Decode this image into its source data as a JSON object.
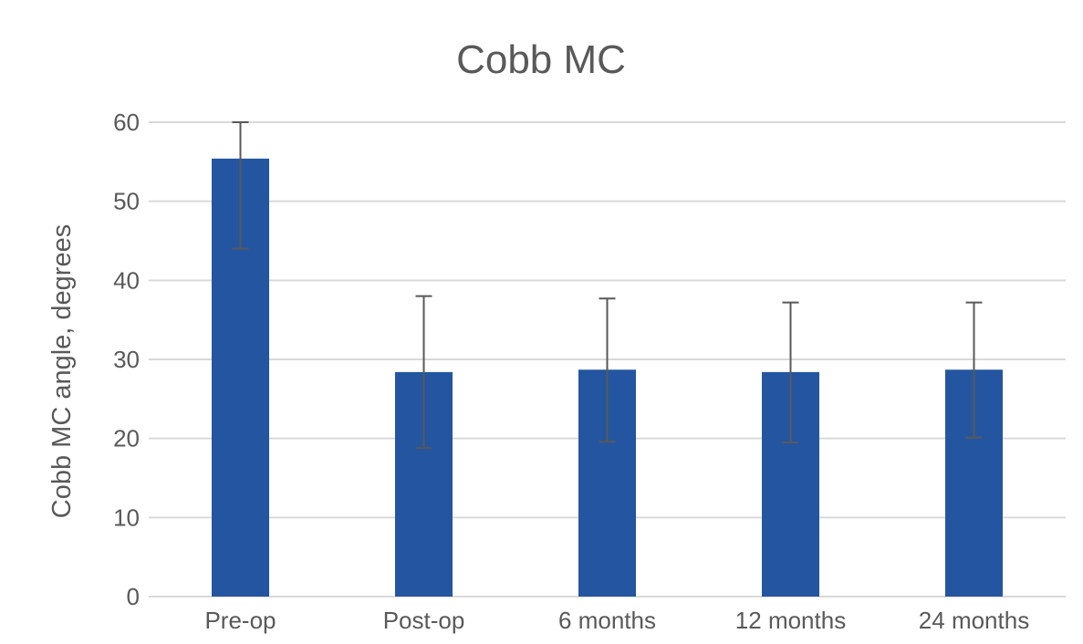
{
  "chart_data": {
    "type": "bar",
    "title": "Cobb MC",
    "xlabel": "",
    "ylabel": "Cobb MC angle, degrees",
    "categories": [
      "Pre-op",
      "Post-op",
      "6 months",
      "12 months",
      "24 months"
    ],
    "values": [
      55.4,
      28.4,
      28.7,
      28.4,
      28.7
    ],
    "error_upper": [
      60.0,
      38.0,
      37.7,
      37.2,
      37.2
    ],
    "error_lower": [
      44.0,
      18.8,
      19.6,
      19.5,
      20.1
    ],
    "ylim": [
      0,
      60
    ],
    "yticks": [
      "0",
      "10",
      "20",
      "30",
      "40",
      "50",
      "60"
    ],
    "grid": true,
    "legend": "none",
    "colors": {
      "bar": "#2455a0",
      "error_bar": "#595959",
      "grid": "#d9d9d9",
      "text": "#595959"
    }
  }
}
